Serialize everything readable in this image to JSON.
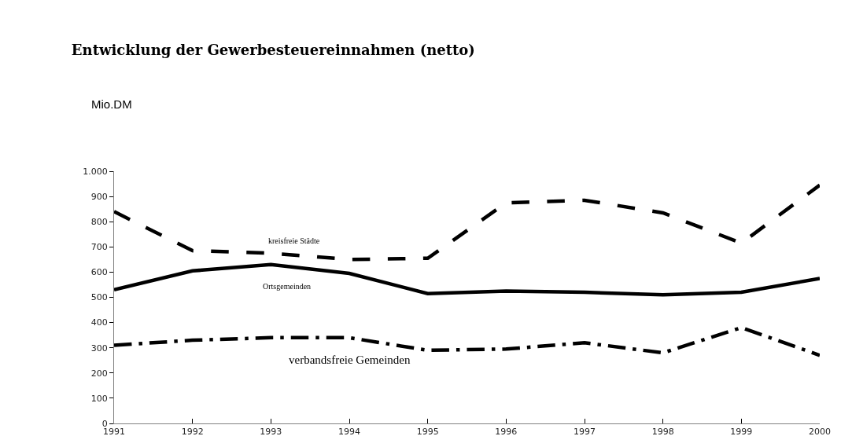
{
  "chart_data": {
    "type": "line",
    "title": "Entwicklung der Gewerbesteuereinnahmen (netto)",
    "ylabel": "Mio.DM",
    "x": [
      1991,
      1992,
      1993,
      1994,
      1995,
      1996,
      1997,
      1998,
      1999,
      2000
    ],
    "series": [
      {
        "name": "kreisfreie Städte",
        "color": "#000000",
        "line_style": "dashed",
        "values": [
          840,
          685,
          675,
          650,
          655,
          875,
          885,
          835,
          715,
          945
        ]
      },
      {
        "name": "Ortsgemeinden",
        "color": "#000000",
        "line_style": "solid",
        "values": [
          530,
          605,
          630,
          595,
          515,
          525,
          520,
          510,
          520,
          575
        ]
      },
      {
        "name": "verbandsfreie Gemeinden",
        "color": "#000000",
        "line_style": "dashdot",
        "values": [
          310,
          330,
          340,
          340,
          290,
          295,
          320,
          280,
          380,
          270
        ]
      }
    ],
    "xlim": [
      1991,
      2000
    ],
    "xticks": [
      1991,
      1992,
      1993,
      1994,
      1995,
      1996,
      1997,
      1998,
      1999,
      2000
    ],
    "ylim": [
      0,
      1000
    ],
    "yticks": [
      0,
      100,
      200,
      300,
      400,
      500,
      600,
      700,
      800,
      900,
      {
        "value": 1000,
        "label": "1.000"
      }
    ],
    "grid": false,
    "legend": false,
    "marker": "none"
  }
}
